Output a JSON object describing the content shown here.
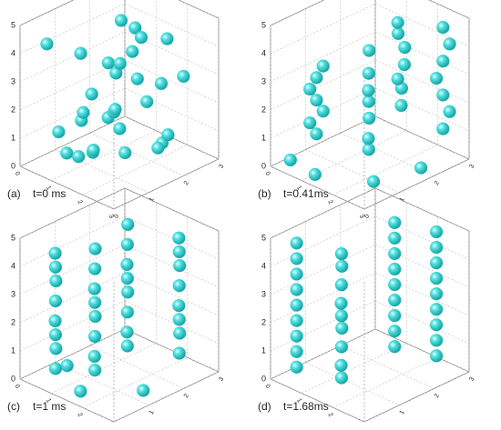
{
  "chart_data": [
    {
      "type": "scatter3d",
      "label": "(a)",
      "title": "t=0 ms",
      "color": "#34d0d0",
      "xlim": [
        0,
        3
      ],
      "ylim": [
        0,
        3
      ],
      "zlim": [
        0,
        5
      ],
      "xticks": [
        0,
        1,
        2,
        3
      ],
      "yticks": [
        0,
        1,
        2,
        3
      ],
      "zticks": [
        0,
        1,
        2,
        3,
        4,
        5
      ],
      "x": [
        0.3,
        0.6,
        1.0,
        1.4,
        1.8,
        2.2,
        2.6,
        0.5,
        0.9,
        1.3,
        1.7,
        2.1,
        2.5,
        0.4,
        0.8,
        1.2,
        1.6,
        2.0,
        2.4,
        2.8,
        0.7,
        1.1,
        1.5,
        1.9,
        2.3,
        0.6,
        1.0,
        1.4,
        1.8,
        2.2
      ],
      "y": [
        0.5,
        1.2,
        2.0,
        0.8,
        2.6,
        1.5,
        0.4,
        2.3,
        0.3,
        1.7,
        1.0,
        2.8,
        2.0,
        1.4,
        2.5,
        0.6,
        2.2,
        0.9,
        1.8,
        0.5,
        1.9,
        1.1,
        2.7,
        0.4,
        1.3,
        0.8,
        2.4,
        1.6,
        0.2,
        2.1
      ],
      "z": [
        4.2,
        3.6,
        4.5,
        2.8,
        3.9,
        4.8,
        3.1,
        2.2,
        1.5,
        3.3,
        2.0,
        2.6,
        1.2,
        1.0,
        3.0,
        0.6,
        1.8,
        2.4,
        0.8,
        1.6,
        2.9,
        0.4,
        2.1,
        1.3,
        3.5,
        0.3,
        4.0,
        1.1,
        2.7,
        0.7
      ]
    },
    {
      "type": "scatter3d",
      "label": "(b)",
      "title": "t=0.41ms",
      "color": "#34d0d0",
      "xlim": [
        0,
        3
      ],
      "ylim": [
        0,
        3
      ],
      "zlim": [
        0,
        5
      ],
      "xticks": [
        0,
        1,
        2,
        3
      ],
      "yticks": [
        0,
        1,
        2,
        3
      ],
      "zticks": [
        0,
        1,
        2,
        3,
        4,
        5
      ],
      "x": [
        0.8,
        0.7,
        0.9,
        0.8,
        0.7,
        0.8,
        0.9,
        1.8,
        1.9,
        1.7,
        1.8,
        1.9,
        1.8,
        1.7,
        1.5,
        1.4,
        1.5,
        1.6,
        1.5,
        1.4,
        1.5,
        2.5,
        2.6,
        2.5,
        2.4,
        2.5,
        2.6,
        2.5,
        0.3,
        1.2,
        2.4,
        2.8
      ],
      "y": [
        0.6,
        0.5,
        0.7,
        0.6,
        0.5,
        0.6,
        0.7,
        1.2,
        1.1,
        1.3,
        1.2,
        1.1,
        1.2,
        1.3,
        2.4,
        2.5,
        2.3,
        2.4,
        2.5,
        2.4,
        2.3,
        2.7,
        2.8,
        2.7,
        2.6,
        2.7,
        2.8,
        2.7,
        0.3,
        0.2,
        0.8,
        1.8
      ],
      "z": [
        1.2,
        1.6,
        2.0,
        2.4,
        2.8,
        3.2,
        3.6,
        0.8,
        1.3,
        1.8,
        2.5,
        3.0,
        3.5,
        4.2,
        1.5,
        2.0,
        2.5,
        3.0,
        3.5,
        4.0,
        4.5,
        1.0,
        1.6,
        2.2,
        2.8,
        3.4,
        4.0,
        4.6,
        0.2,
        0.2,
        0.2,
        0.3
      ]
    },
    {
      "type": "scatter3d",
      "label": "(c)",
      "title": "t=1 ms",
      "color": "#34d0d0",
      "xlim": [
        0,
        3
      ],
      "ylim": [
        0,
        3
      ],
      "zlim": [
        0,
        5
      ],
      "xticks": [
        0,
        1,
        2,
        3
      ],
      "yticks": [
        0,
        1,
        2,
        3
      ],
      "zticks": [
        0,
        1,
        2,
        3,
        4,
        5
      ],
      "x": [
        0.8,
        0.7,
        0.8,
        0.9,
        0.8,
        0.7,
        0.8,
        0.9,
        1.5,
        1.6,
        1.5,
        1.4,
        1.5,
        1.6,
        1.5,
        1.4,
        1.2,
        1.3,
        1.2,
        1.1,
        1.2,
        1.3,
        1.2,
        1.1,
        2.3,
        2.2,
        2.3,
        2.4,
        2.3,
        2.2,
        2.3,
        2.4,
        0.5,
        1.6,
        2.6
      ],
      "y": [
        0.3,
        0.4,
        0.3,
        0.2,
        0.3,
        0.4,
        0.3,
        0.2,
        0.8,
        0.7,
        0.8,
        0.9,
        0.8,
        0.7,
        0.8,
        0.9,
        2.0,
        1.9,
        2.0,
        2.1,
        2.0,
        1.9,
        2.0,
        2.1,
        2.5,
        2.6,
        2.5,
        2.4,
        2.5,
        2.6,
        2.5,
        2.4,
        0.9,
        0.3,
        1.2
      ],
      "z": [
        0.6,
        1.2,
        1.8,
        2.4,
        3.0,
        3.6,
        4.2,
        4.8,
        0.6,
        1.2,
        1.8,
        2.4,
        3.0,
        3.6,
        4.2,
        4.8,
        0.6,
        1.2,
        1.8,
        2.4,
        3.0,
        3.6,
        4.2,
        4.8,
        0.6,
        1.2,
        1.8,
        2.4,
        3.0,
        3.6,
        4.2,
        4.8,
        0.2,
        0.2,
        0.2
      ]
    },
    {
      "type": "scatter3d",
      "label": "(d)",
      "title": "t=1.68ms",
      "color": "#34d0d0",
      "xlim": [
        0,
        3
      ],
      "ylim": [
        0,
        3
      ],
      "zlim": [
        0,
        5
      ],
      "xticks": [
        0,
        1,
        2,
        3
      ],
      "yticks": [
        0,
        1,
        2,
        3
      ],
      "zticks": [
        0,
        1,
        2,
        3,
        4,
        5
      ],
      "x": [
        0.5,
        0.5,
        0.5,
        0.5,
        0.5,
        0.5,
        0.5,
        0.5,
        0.5,
        1.6,
        1.7,
        1.6,
        1.5,
        1.6,
        1.7,
        1.6,
        1.5,
        1.6,
        1.4,
        1.4,
        1.4,
        1.4,
        1.4,
        1.4,
        1.4,
        1.4,
        1.4,
        2.4,
        2.4,
        2.4,
        2.4,
        2.4,
        2.4,
        2.4,
        2.4,
        2.4
      ],
      "y": [
        0.3,
        0.3,
        0.3,
        0.3,
        0.3,
        0.3,
        0.3,
        0.3,
        0.3,
        0.6,
        0.5,
        0.6,
        0.7,
        0.6,
        0.5,
        0.6,
        0.7,
        0.6,
        2.3,
        2.3,
        2.3,
        2.3,
        2.3,
        2.3,
        2.3,
        2.3,
        2.3,
        2.6,
        2.6,
        2.6,
        2.6,
        2.6,
        2.6,
        2.6,
        2.6,
        2.6
      ],
      "z": [
        0.5,
        1.05,
        1.6,
        2.15,
        2.7,
        3.25,
        3.8,
        4.35,
        4.9,
        0.5,
        1.05,
        1.6,
        2.15,
        2.7,
        3.25,
        3.8,
        4.35,
        4.9,
        0.5,
        1.05,
        1.6,
        2.15,
        2.7,
        3.25,
        3.8,
        4.35,
        4.9,
        0.5,
        1.05,
        1.6,
        2.15,
        2.7,
        3.25,
        3.8,
        4.35,
        4.9
      ]
    }
  ]
}
